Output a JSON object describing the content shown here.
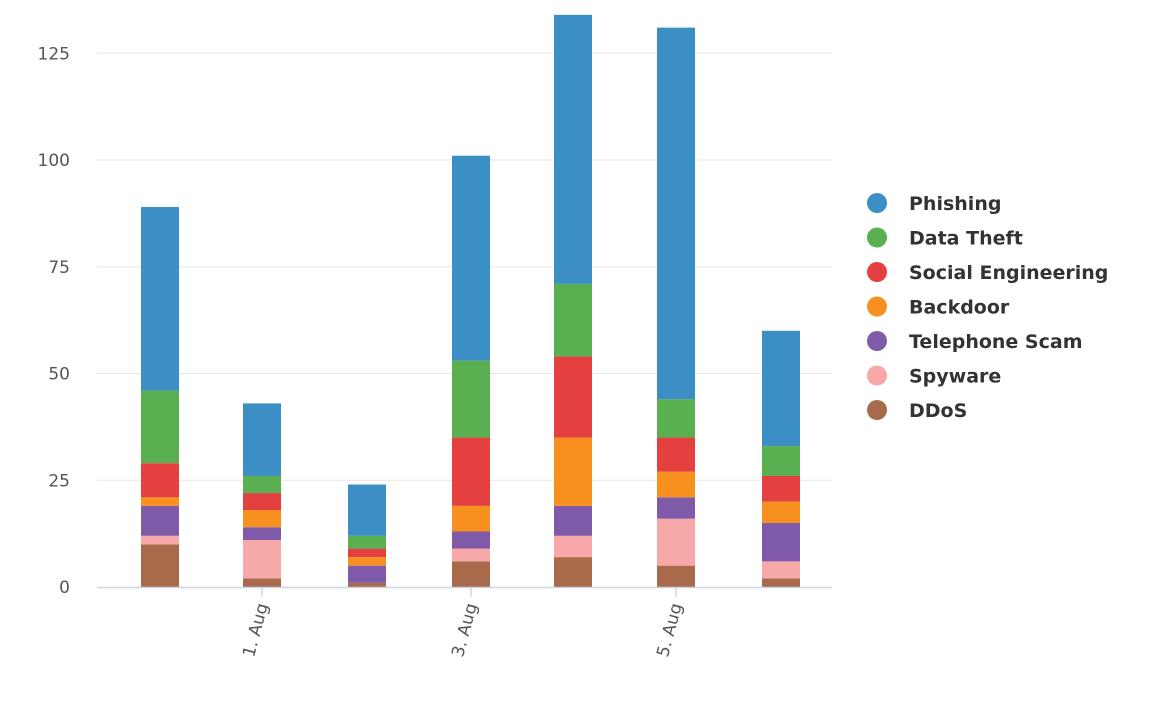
{
  "chart_data": {
    "type": "bar",
    "stacked": true,
    "title": "",
    "xlabel": "",
    "ylabel": "",
    "ylim": [
      0,
      135
    ],
    "y_ticks": [
      0,
      25,
      50,
      75,
      100,
      125
    ],
    "grid": "horizontal",
    "legend_position": "right",
    "x_tick_labels": [
      "1. Aug",
      "3. Aug",
      "5. Aug"
    ],
    "series": [
      {
        "name": "DDoS",
        "color": "#a86a4a",
        "values": [
          10,
          2,
          1,
          6,
          7,
          5,
          2
        ]
      },
      {
        "name": "Spyware",
        "color": "#f7a8a8",
        "values": [
          2,
          9,
          0,
          3,
          5,
          11,
          4
        ]
      },
      {
        "name": "Telephone Scam",
        "color": "#7f5aa8",
        "values": [
          7,
          3,
          4,
          4,
          7,
          5,
          9
        ]
      },
      {
        "name": "Backdoor",
        "color": "#f7901e",
        "values": [
          2,
          4,
          2,
          6,
          16,
          6,
          5
        ]
      },
      {
        "name": "Social Engineering",
        "color": "#e54040",
        "values": [
          8,
          4,
          2,
          16,
          19,
          8,
          6
        ]
      },
      {
        "name": "Data Theft",
        "color": "#5aaf50",
        "values": [
          17,
          4,
          3,
          18,
          17,
          9,
          7
        ]
      },
      {
        "name": "Phishing",
        "color": "#3c8fc4",
        "values": [
          43,
          17,
          12,
          48,
          63,
          87,
          27
        ]
      }
    ],
    "legend_order": [
      "Phishing",
      "Data Theft",
      "Social Engineering",
      "Backdoor",
      "Telephone Scam",
      "Spyware",
      "DDoS"
    ]
  }
}
